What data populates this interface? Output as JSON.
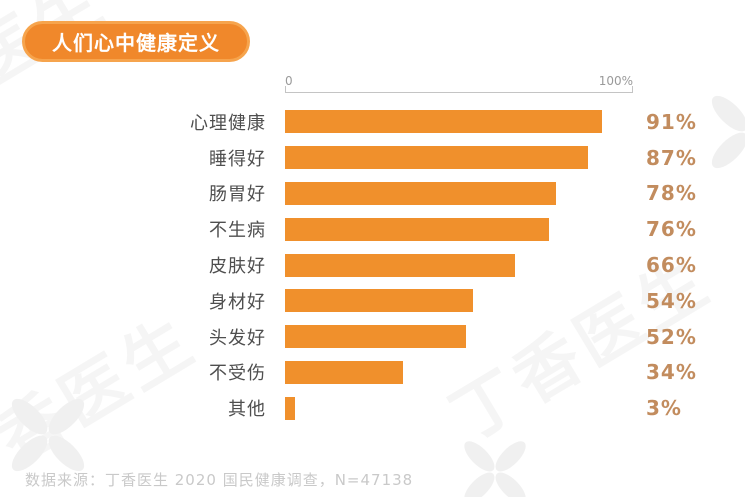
{
  "title": {
    "label": "人们心中健康定义"
  },
  "axis": {
    "min": "0",
    "max": "100%"
  },
  "chart_data": {
    "type": "bar",
    "orientation": "horizontal",
    "title": "人们心中健康定义",
    "categories": [
      "心理健康",
      "睡得好",
      "肠胃好",
      "不生病",
      "皮肤好",
      "身材好",
      "头发好",
      "不受伤",
      "其他"
    ],
    "values": [
      91,
      87,
      78,
      76,
      66,
      54,
      52,
      34,
      3
    ],
    "value_labels": [
      "91%",
      "87%",
      "78%",
      "76%",
      "66%",
      "54%",
      "52%",
      "34%",
      "3%"
    ],
    "xlabel": "",
    "ylabel": "",
    "xlim": [
      0,
      100
    ],
    "x_tick_labels": [
      "0",
      "100%"
    ],
    "grid": false,
    "legend": "none"
  },
  "footer": {
    "source": "数据来源：丁香医生 2020 国民健康调查，N=47138"
  },
  "watermark": {
    "brand_text": "丁香医生"
  },
  "colors": {
    "bar": "#F0902C",
    "badge_bg": "#F0882B",
    "badge_border": "#F6A44D",
    "value_text": "#C28C5E",
    "label_text": "#4F4F4F",
    "axis_text": "#9A9A9A",
    "axis_line": "#C4C4C4",
    "source_text": "#C9C9C9"
  }
}
